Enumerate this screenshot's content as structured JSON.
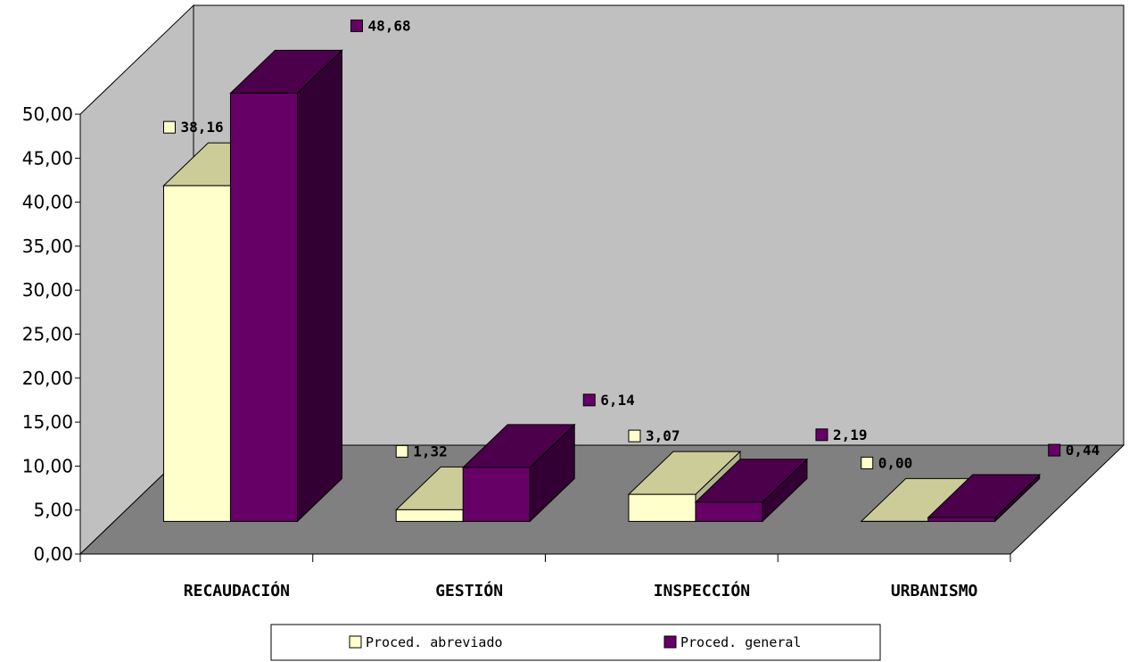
{
  "chart_data": {
    "type": "bar",
    "title": "",
    "xlabel": "",
    "ylabel": "",
    "ylim": [
      0,
      50
    ],
    "y_ticks": [
      "0,00",
      "5,00",
      "10,00",
      "15,00",
      "20,00",
      "25,00",
      "30,00",
      "35,00",
      "40,00",
      "45,00",
      "50,00"
    ],
    "categories": [
      "RECAUDACIÓN",
      "GESTIÓN",
      "INSPECCIÓN",
      "URBANISMO"
    ],
    "series": [
      {
        "name": "Proced. abreviado",
        "values": [
          38.16,
          1.32,
          3.07,
          0.0
        ],
        "labels": [
          "38,16",
          "1,32",
          "3,07",
          "0,00"
        ]
      },
      {
        "name": "Proced. general",
        "values": [
          48.68,
          6.14,
          2.19,
          0.44
        ],
        "labels": [
          "48,68",
          "6,14",
          "2,19",
          "0,44"
        ]
      }
    ],
    "legend_position": "bottom",
    "three_d": true,
    "colors": {
      "series_front": [
        "#FFFFCC",
        "#660066"
      ],
      "series_top": [
        "#CCCC99",
        "#4C004C"
      ],
      "series_side": [
        "#B3B38F",
        "#330033"
      ],
      "back_wall": "#C0C0C0",
      "side_wall": "#C0C0C0",
      "floor": "#808080"
    }
  }
}
